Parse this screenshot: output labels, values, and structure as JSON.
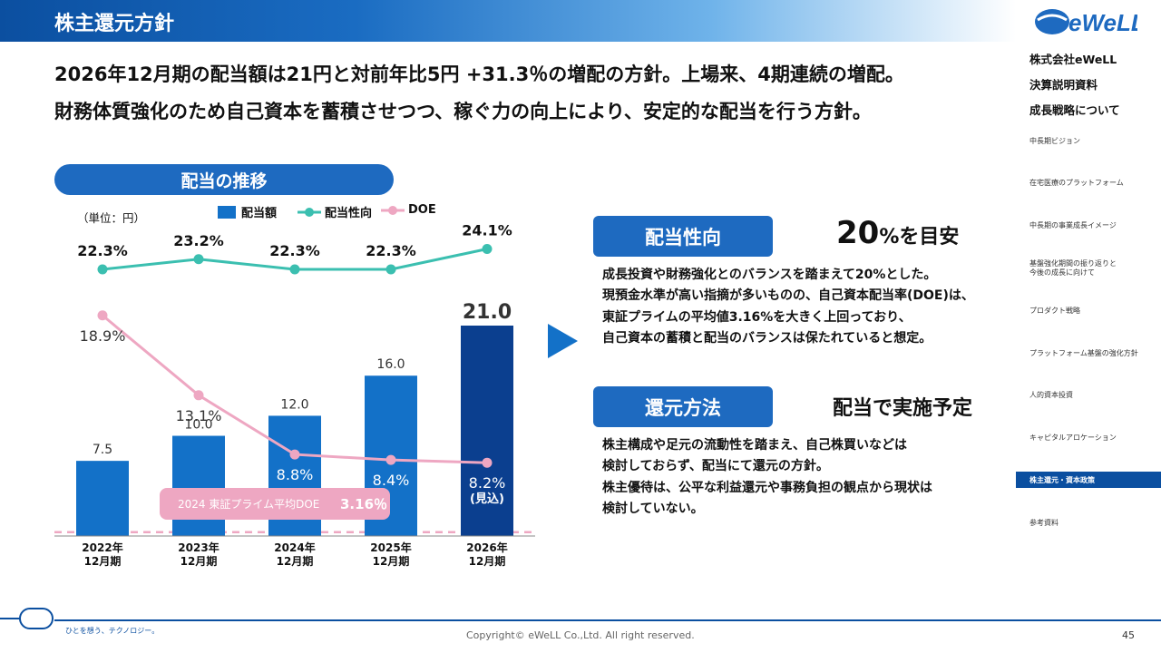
{
  "header": {
    "title": "株主還元方針"
  },
  "headline": {
    "line1": "2026年12月期の配当額は21円と対前年比5円 +31.3％の増配の方針。上場来、4期連続の増配。",
    "line2": "財務体質強化のため自己資本を蓄積させつつ、稼ぐ力の向上により、安定的な配当を行う方針。"
  },
  "sidebar": {
    "logo_text": "eWeLL",
    "company": "株式会社eWeLL",
    "doc_title": "決算説明資料",
    "section": "成長戦略について",
    "items": [
      {
        "label": "中長期ビジョン"
      },
      {
        "label": "在宅医療のプラットフォーム"
      },
      {
        "label": "中長期の事業成長イメージ"
      },
      {
        "label": "基盤強化期間の振り返りと\n今後の成長に向けて"
      },
      {
        "label": "プロダクト戦略"
      },
      {
        "label": "プラットフォーム基盤の強化方針"
      },
      {
        "label": "人的資本投資"
      },
      {
        "label": "キャピタルアロケーション"
      },
      {
        "label": "株主還元・資本政策",
        "active": true
      },
      {
        "label": "参考資料"
      }
    ]
  },
  "chart_section": {
    "title": "配当の推移",
    "unit": "（単位：円）",
    "legend": {
      "bar": "配当額",
      "payout": "配当性向",
      "doe": "DOE"
    }
  },
  "chart_data": {
    "type": "bar",
    "categories": [
      "2022年\n12月期",
      "2023年\n12月期",
      "2024年\n12月期",
      "2025年\n12月期",
      "2026年\n12月期"
    ],
    "series": [
      {
        "name": "配当額",
        "type": "bar",
        "values": [
          7.5,
          10.0,
          12.0,
          16.0,
          21.0
        ],
        "labels": [
          "7.5",
          "10.0",
          "12.0",
          "16.0",
          "21.0"
        ],
        "color": "#1371c8",
        "highlight_color": "#0b3f8f"
      },
      {
        "name": "配当性向",
        "type": "line",
        "values": [
          22.3,
          23.2,
          22.3,
          22.3,
          24.1
        ],
        "labels": [
          "22.3%",
          "23.2%",
          "22.3%",
          "22.3%",
          "24.1%"
        ],
        "color": "#3bbfb0"
      },
      {
        "name": "DOE",
        "type": "line",
        "values": [
          18.9,
          13.1,
          8.8,
          8.4,
          8.2
        ],
        "labels": [
          "18.9%",
          "13.1%",
          "8.8%",
          "8.4%",
          "8.2%"
        ],
        "color": "#eea7c2"
      }
    ],
    "forecast_note": "(見込)",
    "reference_line": {
      "label": "2024 東証プライム平均DOE",
      "value_label": "3.16％",
      "value": 3.16,
      "color": "#eea7c2"
    }
  },
  "payout": {
    "tag": "配当性向",
    "aside_big": "20",
    "aside_rest": "%を目安",
    "lines": [
      "成長投資や財務強化とのバランスを踏まえて20%とした。",
      "現預金水準が高い指摘が多いものの、自己資本配当率(DOE)は、",
      "東証プライムの平均値3.16%を大きく上回っており、",
      "自己資本の蓄積と配当のバランスは保たれていると想定。"
    ]
  },
  "return_method": {
    "tag": "還元方法",
    "aside": "配当で実施予定",
    "lines": [
      "株主構成や足元の流動性を踏まえ、自己株買いなどは",
      "検討しておらず、配当にて還元の方針。",
      "株主優待は、公平な利益還元や事務負担の観点から現状は",
      "検討していない。"
    ]
  },
  "footer": {
    "tagline": "ひとを想う、テクノロジー。",
    "copyright": "Copyright© eWeLL Co.,Ltd. All right reserved.",
    "page": "45"
  },
  "colors": {
    "primary": "#1e6ac0",
    "dark": "#0b4fa0",
    "teal": "#3bbfb0",
    "pink": "#eea7c2"
  }
}
